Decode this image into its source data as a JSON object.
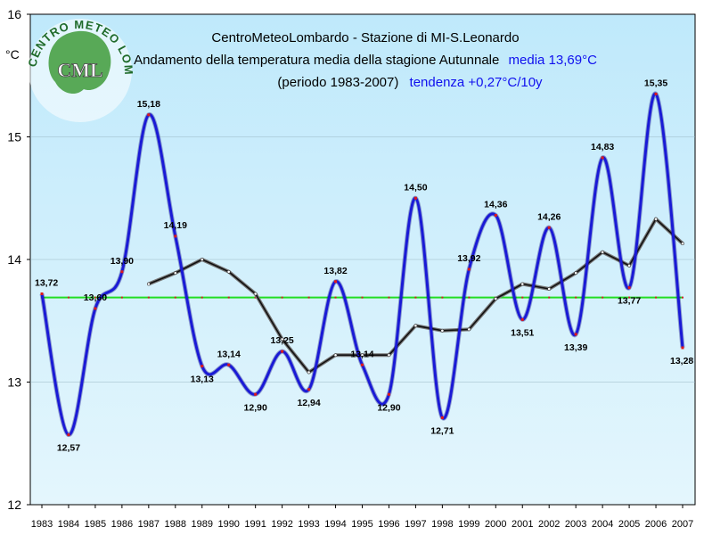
{
  "chart_data": {
    "type": "line",
    "title": "CentroMeteoLombardo - Stazione di MI-S.Leonardo",
    "subtitle_prefix": "Andamento della temperatura media della stagione Autunnale",
    "subtitle_media": "media 13,69°C",
    "period": "(periodo 1983-2007)",
    "trend": "tendenza +0,27°C/10y",
    "ylabel": "°C",
    "ylim": [
      12,
      16
    ],
    "yticks": [
      "12",
      "13",
      "14",
      "15",
      "16"
    ],
    "x": [
      "1983",
      "1984",
      "1985",
      "1986",
      "1987",
      "1988",
      "1989",
      "1990",
      "1991",
      "1992",
      "1993",
      "1994",
      "1995",
      "1996",
      "1997",
      "1998",
      "1999",
      "2000",
      "2001",
      "2002",
      "2003",
      "2004",
      "2005",
      "2006",
      "2007"
    ],
    "series": [
      {
        "color": "#1a1ad6",
        "values": [
          13.72,
          12.57,
          13.6,
          13.9,
          15.18,
          14.19,
          13.13,
          13.14,
          12.9,
          13.25,
          12.94,
          13.82,
          13.14,
          12.9,
          14.5,
          12.71,
          13.92,
          14.36,
          13.51,
          14.26,
          13.39,
          14.83,
          13.77,
          15.35,
          13.28
        ],
        "labels": [
          "13,72",
          "12,57",
          "13,60",
          "13,90",
          "15,18",
          "14,19",
          "13,13",
          "13,14",
          "12,90",
          "13,25",
          "12,94",
          "13,82",
          "13,14",
          "12,90",
          "14,50",
          "12,71",
          "13,92",
          "14,36",
          "13,51",
          "14,26",
          "13,39",
          "14,83",
          "13,77",
          "15,35",
          "13,28"
        ]
      },
      {
        "color": "#111111",
        "values": [
          null,
          null,
          null,
          null,
          13.8,
          13.89,
          14.0,
          13.9,
          13.72,
          13.35,
          13.08,
          13.22,
          13.22,
          13.22,
          13.46,
          13.42,
          13.43,
          13.68,
          13.8,
          13.76,
          13.89,
          14.06,
          13.95,
          14.33,
          14.13
        ]
      },
      {
        "color": "#22dd22",
        "values": [
          13.69,
          13.69,
          13.69,
          13.69,
          13.69,
          13.69,
          13.69,
          13.69,
          13.69,
          13.69,
          13.69,
          13.69,
          13.69,
          13.69,
          13.69,
          13.69,
          13.69,
          13.69,
          13.69,
          13.69,
          13.69,
          13.69,
          13.69,
          13.69,
          13.69
        ]
      }
    ]
  },
  "logo": {
    "ring_text": "CENTRO METEO LOMBARDO",
    "center": "CML"
  }
}
